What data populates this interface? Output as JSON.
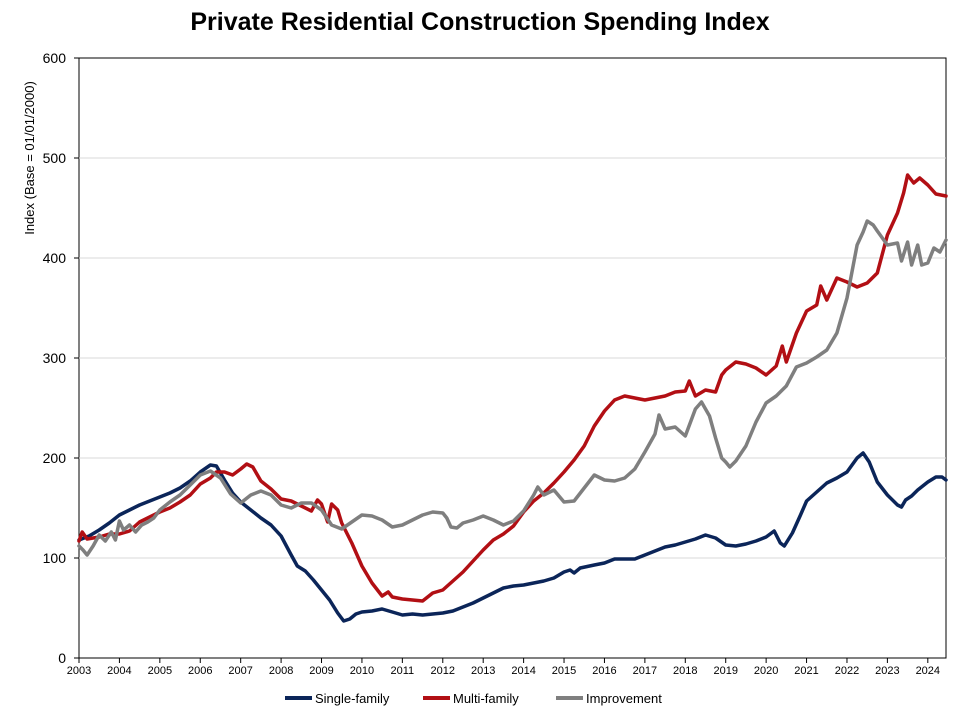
{
  "chart_data": {
    "type": "line",
    "title": "Private Residential Construction Spending Index",
    "xlabel": "",
    "ylabel": "Index  (Base = 01/01/2000)",
    "ylim": [
      0,
      600
    ],
    "yticks": [
      0,
      100,
      200,
      300,
      400,
      500,
      600
    ],
    "xlim": [
      2003.0,
      2024.45
    ],
    "xticks": [
      "2003",
      "2004",
      "2005",
      "2006",
      "2007",
      "2008",
      "2009",
      "2010",
      "2011",
      "2012",
      "2013",
      "2014",
      "2015",
      "2016",
      "2017",
      "2018",
      "2019",
      "2020",
      "2021",
      "2022",
      "2023",
      "2024"
    ],
    "grid": "horizontal",
    "legend_position": "bottom",
    "series": [
      {
        "name": "Single-family",
        "color": "#0b2559",
        "points": [
          [
            2003.0,
            118
          ],
          [
            2003.25,
            122
          ],
          [
            2003.5,
            128
          ],
          [
            2003.75,
            135
          ],
          [
            2004.0,
            143
          ],
          [
            2004.25,
            148
          ],
          [
            2004.5,
            153
          ],
          [
            2004.75,
            157
          ],
          [
            2005.0,
            161
          ],
          [
            2005.25,
            165
          ],
          [
            2005.5,
            170
          ],
          [
            2005.75,
            177
          ],
          [
            2006.0,
            186
          ],
          [
            2006.25,
            193
          ],
          [
            2006.4,
            192
          ],
          [
            2006.6,
            178
          ],
          [
            2006.8,
            165
          ],
          [
            2007.0,
            156
          ],
          [
            2007.25,
            148
          ],
          [
            2007.5,
            140
          ],
          [
            2007.75,
            133
          ],
          [
            2008.0,
            122
          ],
          [
            2008.25,
            103
          ],
          [
            2008.4,
            92
          ],
          [
            2008.6,
            87
          ],
          [
            2008.8,
            78
          ],
          [
            2009.0,
            68
          ],
          [
            2009.2,
            58
          ],
          [
            2009.4,
            45
          ],
          [
            2009.55,
            37
          ],
          [
            2009.7,
            39
          ],
          [
            2009.85,
            44
          ],
          [
            2010.0,
            46
          ],
          [
            2010.25,
            47
          ],
          [
            2010.5,
            49
          ],
          [
            2010.75,
            46
          ],
          [
            2011.0,
            43
          ],
          [
            2011.25,
            44
          ],
          [
            2011.5,
            43
          ],
          [
            2011.75,
            44
          ],
          [
            2012.0,
            45
          ],
          [
            2012.25,
            47
          ],
          [
            2012.5,
            51
          ],
          [
            2012.75,
            55
          ],
          [
            2013.0,
            60
          ],
          [
            2013.25,
            65
          ],
          [
            2013.5,
            70
          ],
          [
            2013.75,
            72
          ],
          [
            2014.0,
            73
          ],
          [
            2014.25,
            75
          ],
          [
            2014.5,
            77
          ],
          [
            2014.75,
            80
          ],
          [
            2015.0,
            86
          ],
          [
            2015.15,
            88
          ],
          [
            2015.25,
            85
          ],
          [
            2015.4,
            90
          ],
          [
            2015.75,
            93
          ],
          [
            2016.0,
            95
          ],
          [
            2016.25,
            99
          ],
          [
            2016.5,
            99
          ],
          [
            2016.75,
            99
          ],
          [
            2017.0,
            103
          ],
          [
            2017.25,
            107
          ],
          [
            2017.5,
            111
          ],
          [
            2017.75,
            113
          ],
          [
            2018.0,
            116
          ],
          [
            2018.25,
            119
          ],
          [
            2018.5,
            123
          ],
          [
            2018.75,
            120
          ],
          [
            2019.0,
            113
          ],
          [
            2019.25,
            112
          ],
          [
            2019.5,
            114
          ],
          [
            2019.75,
            117
          ],
          [
            2020.0,
            121
          ],
          [
            2020.2,
            127
          ],
          [
            2020.35,
            115
          ],
          [
            2020.45,
            112
          ],
          [
            2020.65,
            125
          ],
          [
            2020.85,
            143
          ],
          [
            2021.0,
            157
          ],
          [
            2021.25,
            166
          ],
          [
            2021.5,
            175
          ],
          [
            2021.75,
            180
          ],
          [
            2022.0,
            186
          ],
          [
            2022.25,
            200
          ],
          [
            2022.4,
            205
          ],
          [
            2022.55,
            196
          ],
          [
            2022.75,
            176
          ],
          [
            2023.0,
            163
          ],
          [
            2023.25,
            153
          ],
          [
            2023.35,
            151
          ],
          [
            2023.45,
            158
          ],
          [
            2023.6,
            162
          ],
          [
            2023.75,
            168
          ],
          [
            2024.0,
            176
          ],
          [
            2024.2,
            181
          ],
          [
            2024.35,
            181
          ],
          [
            2024.45,
            178
          ]
        ]
      },
      {
        "name": "Multi-family",
        "color": "#b20f14",
        "points": [
          [
            2003.0,
            117
          ],
          [
            2003.08,
            126
          ],
          [
            2003.2,
            119
          ],
          [
            2003.5,
            121
          ],
          [
            2003.75,
            124
          ],
          [
            2004.0,
            124
          ],
          [
            2004.25,
            127
          ],
          [
            2004.5,
            136
          ],
          [
            2004.75,
            141
          ],
          [
            2005.0,
            146
          ],
          [
            2005.25,
            150
          ],
          [
            2005.5,
            156
          ],
          [
            2005.75,
            163
          ],
          [
            2006.0,
            174
          ],
          [
            2006.25,
            180
          ],
          [
            2006.4,
            186
          ],
          [
            2006.6,
            186
          ],
          [
            2006.8,
            183
          ],
          [
            2007.0,
            189
          ],
          [
            2007.15,
            194
          ],
          [
            2007.3,
            191
          ],
          [
            2007.5,
            177
          ],
          [
            2007.75,
            169
          ],
          [
            2008.0,
            159
          ],
          [
            2008.25,
            157
          ],
          [
            2008.5,
            152
          ],
          [
            2008.75,
            147
          ],
          [
            2008.9,
            158
          ],
          [
            2009.0,
            154
          ],
          [
            2009.15,
            136
          ],
          [
            2009.25,
            154
          ],
          [
            2009.4,
            148
          ],
          [
            2009.5,
            135
          ],
          [
            2009.75,
            115
          ],
          [
            2010.0,
            92
          ],
          [
            2010.25,
            75
          ],
          [
            2010.5,
            62
          ],
          [
            2010.65,
            66
          ],
          [
            2010.75,
            61
          ],
          [
            2011.0,
            59
          ],
          [
            2011.25,
            58
          ],
          [
            2011.5,
            57
          ],
          [
            2011.75,
            65
          ],
          [
            2012.0,
            68
          ],
          [
            2012.25,
            77
          ],
          [
            2012.5,
            86
          ],
          [
            2012.75,
            97
          ],
          [
            2013.0,
            108
          ],
          [
            2013.25,
            118
          ],
          [
            2013.5,
            124
          ],
          [
            2013.75,
            132
          ],
          [
            2014.0,
            146
          ],
          [
            2014.25,
            157
          ],
          [
            2014.5,
            165
          ],
          [
            2014.75,
            175
          ],
          [
            2015.0,
            186
          ],
          [
            2015.25,
            198
          ],
          [
            2015.5,
            212
          ],
          [
            2015.75,
            232
          ],
          [
            2016.0,
            247
          ],
          [
            2016.25,
            258
          ],
          [
            2016.5,
            262
          ],
          [
            2016.75,
            260
          ],
          [
            2017.0,
            258
          ],
          [
            2017.25,
            260
          ],
          [
            2017.5,
            262
          ],
          [
            2017.75,
            266
          ],
          [
            2018.0,
            267
          ],
          [
            2018.1,
            277
          ],
          [
            2018.25,
            262
          ],
          [
            2018.5,
            268
          ],
          [
            2018.75,
            266
          ],
          [
            2018.9,
            283
          ],
          [
            2019.0,
            288
          ],
          [
            2019.25,
            296
          ],
          [
            2019.5,
            294
          ],
          [
            2019.75,
            290
          ],
          [
            2020.0,
            283
          ],
          [
            2020.25,
            292
          ],
          [
            2020.4,
            312
          ],
          [
            2020.5,
            296
          ],
          [
            2020.75,
            325
          ],
          [
            2021.0,
            347
          ],
          [
            2021.25,
            353
          ],
          [
            2021.35,
            372
          ],
          [
            2021.5,
            358
          ],
          [
            2021.75,
            380
          ],
          [
            2022.0,
            376
          ],
          [
            2022.25,
            371
          ],
          [
            2022.5,
            375
          ],
          [
            2022.75,
            385
          ],
          [
            2023.0,
            423
          ],
          [
            2023.25,
            445
          ],
          [
            2023.4,
            465
          ],
          [
            2023.5,
            483
          ],
          [
            2023.65,
            475
          ],
          [
            2023.8,
            480
          ],
          [
            2024.0,
            473
          ],
          [
            2024.2,
            464
          ],
          [
            2024.45,
            462
          ]
        ]
      },
      {
        "name": "Improvement",
        "color": "#7f7f7f",
        "points": [
          [
            2003.0,
            112
          ],
          [
            2003.1,
            108
          ],
          [
            2003.2,
            103
          ],
          [
            2003.35,
            112
          ],
          [
            2003.5,
            123
          ],
          [
            2003.65,
            117
          ],
          [
            2003.8,
            126
          ],
          [
            2003.9,
            118
          ],
          [
            2004.0,
            137
          ],
          [
            2004.1,
            128
          ],
          [
            2004.25,
            133
          ],
          [
            2004.4,
            126
          ],
          [
            2004.55,
            133
          ],
          [
            2004.7,
            136
          ],
          [
            2004.85,
            140
          ],
          [
            2005.0,
            148
          ],
          [
            2005.25,
            156
          ],
          [
            2005.5,
            163
          ],
          [
            2005.75,
            173
          ],
          [
            2006.0,
            183
          ],
          [
            2006.25,
            187
          ],
          [
            2006.5,
            180
          ],
          [
            2006.75,
            164
          ],
          [
            2007.0,
            155
          ],
          [
            2007.25,
            163
          ],
          [
            2007.5,
            167
          ],
          [
            2007.75,
            163
          ],
          [
            2008.0,
            153
          ],
          [
            2008.25,
            150
          ],
          [
            2008.5,
            155
          ],
          [
            2008.75,
            155
          ],
          [
            2009.0,
            148
          ],
          [
            2009.25,
            133
          ],
          [
            2009.5,
            129
          ],
          [
            2009.75,
            136
          ],
          [
            2010.0,
            143
          ],
          [
            2010.25,
            142
          ],
          [
            2010.5,
            138
          ],
          [
            2010.75,
            131
          ],
          [
            2011.0,
            133
          ],
          [
            2011.25,
            138
          ],
          [
            2011.5,
            143
          ],
          [
            2011.75,
            146
          ],
          [
            2012.0,
            145
          ],
          [
            2012.1,
            140
          ],
          [
            2012.2,
            131
          ],
          [
            2012.35,
            130
          ],
          [
            2012.5,
            135
          ],
          [
            2012.75,
            138
          ],
          [
            2013.0,
            142
          ],
          [
            2013.25,
            138
          ],
          [
            2013.5,
            133
          ],
          [
            2013.75,
            137
          ],
          [
            2014.0,
            147
          ],
          [
            2014.25,
            163
          ],
          [
            2014.35,
            171
          ],
          [
            2014.5,
            163
          ],
          [
            2014.75,
            168
          ],
          [
            2015.0,
            156
          ],
          [
            2015.25,
            157
          ],
          [
            2015.5,
            170
          ],
          [
            2015.75,
            183
          ],
          [
            2016.0,
            178
          ],
          [
            2016.25,
            177
          ],
          [
            2016.5,
            180
          ],
          [
            2016.75,
            189
          ],
          [
            2017.0,
            206
          ],
          [
            2017.25,
            224
          ],
          [
            2017.35,
            243
          ],
          [
            2017.5,
            229
          ],
          [
            2017.75,
            231
          ],
          [
            2018.0,
            222
          ],
          [
            2018.25,
            249
          ],
          [
            2018.4,
            256
          ],
          [
            2018.6,
            242
          ],
          [
            2018.75,
            220
          ],
          [
            2018.9,
            200
          ],
          [
            2019.0,
            196
          ],
          [
            2019.1,
            191
          ],
          [
            2019.25,
            197
          ],
          [
            2019.5,
            212
          ],
          [
            2019.75,
            236
          ],
          [
            2020.0,
            255
          ],
          [
            2020.25,
            262
          ],
          [
            2020.5,
            272
          ],
          [
            2020.75,
            291
          ],
          [
            2021.0,
            295
          ],
          [
            2021.25,
            301
          ],
          [
            2021.5,
            308
          ],
          [
            2021.75,
            325
          ],
          [
            2022.0,
            360
          ],
          [
            2022.25,
            413
          ],
          [
            2022.4,
            426
          ],
          [
            2022.5,
            437
          ],
          [
            2022.65,
            433
          ],
          [
            2022.75,
            427
          ],
          [
            2023.0,
            413
          ],
          [
            2023.25,
            415
          ],
          [
            2023.35,
            397
          ],
          [
            2023.5,
            416
          ],
          [
            2023.6,
            393
          ],
          [
            2023.75,
            413
          ],
          [
            2023.85,
            393
          ],
          [
            2024.0,
            395
          ],
          [
            2024.15,
            410
          ],
          [
            2024.3,
            406
          ],
          [
            2024.45,
            418
          ]
        ]
      }
    ]
  }
}
